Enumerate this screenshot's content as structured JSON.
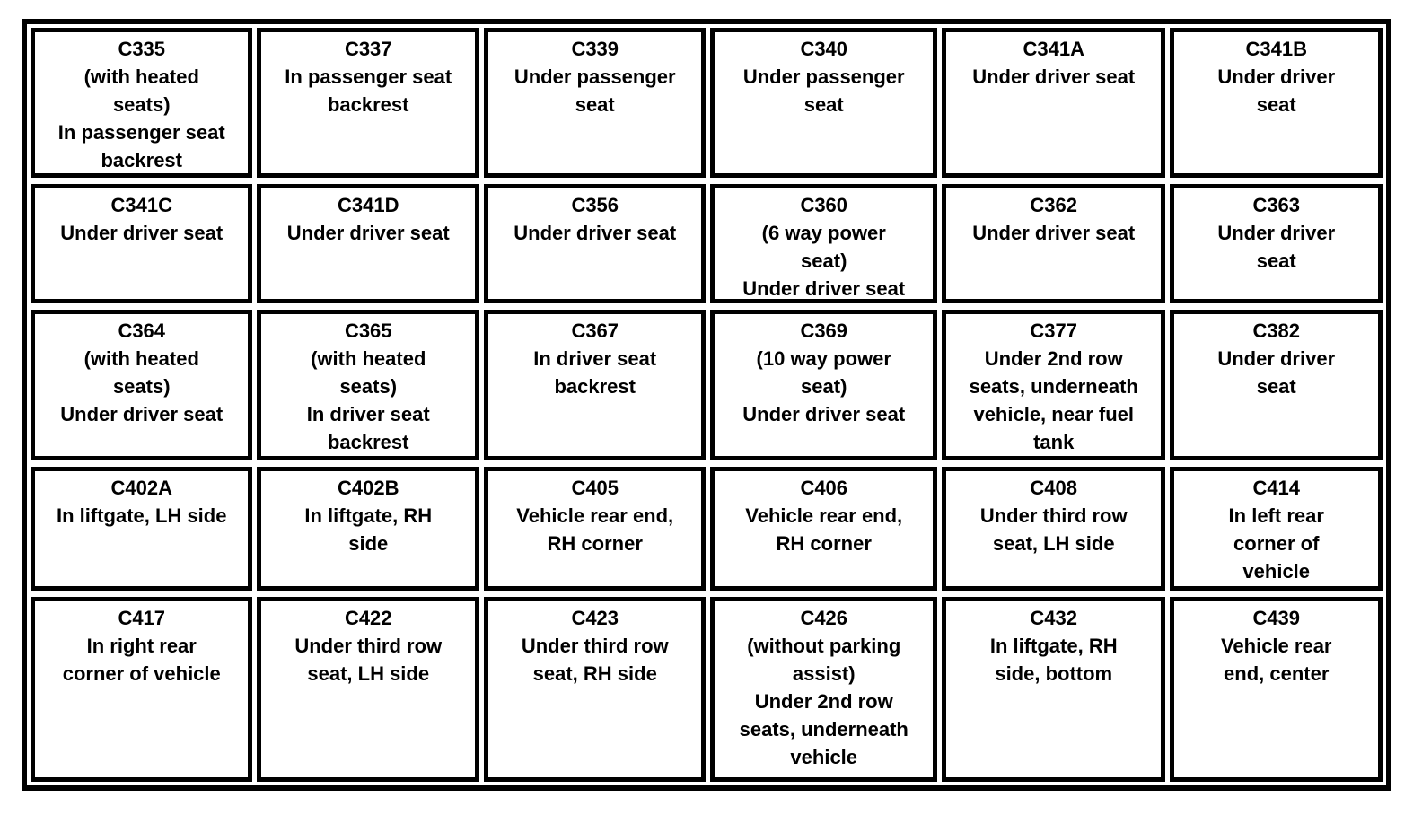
{
  "page": {
    "background_color": "#ffffff"
  },
  "table": {
    "name": "connector-location-table",
    "border_color": "#000000",
    "text_color": "#000000",
    "columns": 6,
    "rows": [
      [
        {
          "code": "C335",
          "location": "(with heated\nseats)\nIn passenger seat\nbackrest"
        },
        {
          "code": "C337",
          "location": "In passenger seat\nbackrest"
        },
        {
          "code": "C339",
          "location": "Under passenger\nseat"
        },
        {
          "code": "C340",
          "location": "Under passenger\nseat"
        },
        {
          "code": "C341A",
          "location": "Under driver seat"
        },
        {
          "code": "C341B",
          "location": "Under driver\nseat"
        }
      ],
      [
        {
          "code": "C341C",
          "location": "Under driver seat"
        },
        {
          "code": "C341D",
          "location": "Under driver seat"
        },
        {
          "code": "C356",
          "location": "Under driver seat"
        },
        {
          "code": "C360",
          "location": "(6 way power\nseat)\nUnder driver seat"
        },
        {
          "code": "C362",
          "location": "Under driver seat"
        },
        {
          "code": "C363",
          "location": "Under driver\nseat"
        }
      ],
      [
        {
          "code": "C364",
          "location": "(with heated\nseats)\nUnder driver seat"
        },
        {
          "code": "C365",
          "location": "(with heated\nseats)\nIn driver seat\nbackrest"
        },
        {
          "code": "C367",
          "location": "In driver seat\nbackrest"
        },
        {
          "code": "C369",
          "location": "(10 way power\nseat)\nUnder driver seat"
        },
        {
          "code": "C377",
          "location": "Under 2nd row\nseats, underneath\nvehicle, near fuel\ntank"
        },
        {
          "code": "C382",
          "location": "Under driver\nseat"
        }
      ],
      [
        {
          "code": "C402A",
          "location": "In liftgate, LH side"
        },
        {
          "code": "C402B",
          "location": "In liftgate, RH\nside"
        },
        {
          "code": "C405",
          "location": "Vehicle rear end,\nRH corner"
        },
        {
          "code": "C406",
          "location": "Vehicle rear end,\nRH corner"
        },
        {
          "code": "C408",
          "location": "Under third row\nseat, LH side"
        },
        {
          "code": "C414",
          "location": "In left rear\ncorner of\nvehicle"
        }
      ],
      [
        {
          "code": "C417",
          "location": "In right rear\ncorner of vehicle"
        },
        {
          "code": "C422",
          "location": "Under third row\nseat, LH side"
        },
        {
          "code": "C423",
          "location": "Under third row\nseat, RH side"
        },
        {
          "code": "C426",
          "location": "(without parking\nassist)\nUnder 2nd row\nseats, underneath\nvehicle"
        },
        {
          "code": "C432",
          "location": "In liftgate, RH\nside, bottom"
        },
        {
          "code": "C439",
          "location": "Vehicle rear\nend, center"
        }
      ]
    ]
  }
}
